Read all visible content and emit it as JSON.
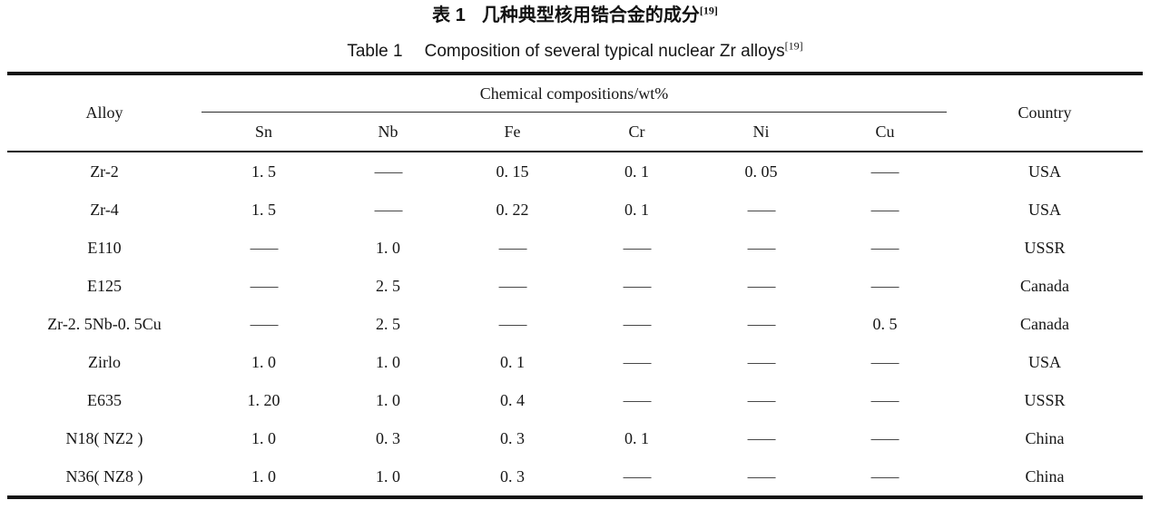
{
  "caption": {
    "zh_label": "表 1",
    "zh_title": "几种典型核用锆合金的成分",
    "en_label": "Table 1",
    "en_title": "Composition of several typical nuclear Zr alloys",
    "reference": "[19]"
  },
  "table": {
    "alloy_header": "Alloy",
    "group_header": "Chemical compositions/wt%",
    "country_header": "Country",
    "element_headers": [
      "Sn",
      "Nb",
      "Fe",
      "Cr",
      "Ni",
      "Cu"
    ],
    "rows": [
      {
        "alloy": "Zr-2",
        "values": [
          "1. 5",
          "—",
          "0. 15",
          "0. 1",
          "0. 05",
          "—"
        ],
        "country": "USA"
      },
      {
        "alloy": "Zr-4",
        "values": [
          "1. 5",
          "—",
          "0. 22",
          "0. 1",
          "—",
          "—"
        ],
        "country": "USA"
      },
      {
        "alloy": "E110",
        "values": [
          "—",
          "1. 0",
          "—",
          "—",
          "—",
          "—"
        ],
        "country": "USSR"
      },
      {
        "alloy": "E125",
        "values": [
          "—",
          "2. 5",
          "—",
          "—",
          "—",
          "—"
        ],
        "country": "Canada"
      },
      {
        "alloy": "Zr-2. 5Nb-0. 5Cu",
        "values": [
          "—",
          "2. 5",
          "—",
          "—",
          "—",
          "0. 5"
        ],
        "country": "Canada"
      },
      {
        "alloy": "Zirlo",
        "values": [
          "1. 0",
          "1. 0",
          "0. 1",
          "—",
          "—",
          "—"
        ],
        "country": "USA"
      },
      {
        "alloy": "E635",
        "values": [
          "1. 20",
          "1. 0",
          "0. 4",
          "—",
          "—",
          "—"
        ],
        "country": "USSR"
      },
      {
        "alloy": "N18( NZ2 )",
        "values": [
          "1. 0",
          "0. 3",
          "0. 3",
          "0. 1",
          "—",
          "—"
        ],
        "country": "China"
      },
      {
        "alloy": "N36( NZ8 )",
        "values": [
          "1. 0",
          "1. 0",
          "0. 3",
          "—",
          "—",
          "—"
        ],
        "country": "China"
      }
    ]
  }
}
